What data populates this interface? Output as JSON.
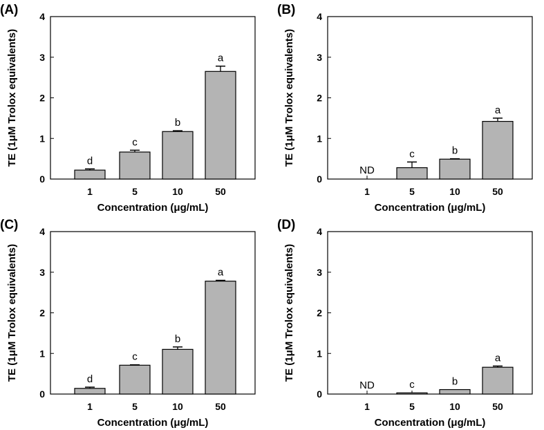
{
  "chart_data": [
    {
      "type": "bar",
      "panel_label": "(A)",
      "categories": [
        "1",
        "5",
        "10",
        "50"
      ],
      "values": [
        0.22,
        0.665,
        1.17,
        2.65
      ],
      "errors": [
        0.03,
        0.045,
        0.02,
        0.13
      ],
      "annotations": [
        "d",
        "c",
        "b",
        "a"
      ],
      "xlabel": "Concentration (μg/mL)",
      "ylabel": "TE (1μM Trolox equivalents)",
      "ylim": [
        0,
        4
      ],
      "yticks": [
        "0",
        "1",
        "2",
        "3",
        "4"
      ],
      "grid": false,
      "bar_color": "#b4b4b4"
    },
    {
      "type": "bar",
      "panel_label": "(B)",
      "categories": [
        "1",
        "5",
        "10",
        "50"
      ],
      "values": [
        null,
        0.28,
        0.49,
        1.42
      ],
      "errors": [
        null,
        0.14,
        0.01,
        0.08
      ],
      "annotations": [
        "ND",
        "c",
        "b",
        "a"
      ],
      "xlabel": "Concentration (μg/mL)",
      "ylabel": "TE (1μM Trolox equivalents)",
      "ylim": [
        0,
        4
      ],
      "yticks": [
        "0",
        "1",
        "2",
        "3",
        "4"
      ],
      "grid": false,
      "bar_color": "#b4b4b4"
    },
    {
      "type": "bar",
      "panel_label": "(C)",
      "categories": [
        "1",
        "5",
        "10",
        "50"
      ],
      "values": [
        0.14,
        0.71,
        1.1,
        2.78
      ],
      "errors": [
        0.03,
        0.01,
        0.06,
        0.02
      ],
      "annotations": [
        "d",
        "c",
        "b",
        "a"
      ],
      "xlabel": "Concentration (μg/mL)",
      "ylabel": "TE (1μM Trolox equivalents)",
      "ylim": [
        0,
        4
      ],
      "yticks": [
        "0",
        "1",
        "2",
        "3",
        "4"
      ],
      "grid": false,
      "bar_color": "#b4b4b4"
    },
    {
      "type": "bar",
      "panel_label": "(D)",
      "categories": [
        "1",
        "5",
        "10",
        "50"
      ],
      "values": [
        null,
        0.03,
        0.11,
        0.66
      ],
      "errors": [
        null,
        0.0,
        0.0,
        0.03
      ],
      "annotations": [
        "ND",
        "c",
        "b",
        "a"
      ],
      "xlabel": "Concentration (μg/mL)",
      "ylabel": "TE (1μM Trolox equivalents)",
      "ylim": [
        0,
        4
      ],
      "yticks": [
        "0",
        "1",
        "2",
        "3",
        "4"
      ],
      "grid": false,
      "bar_color": "#b4b4b4"
    }
  ]
}
